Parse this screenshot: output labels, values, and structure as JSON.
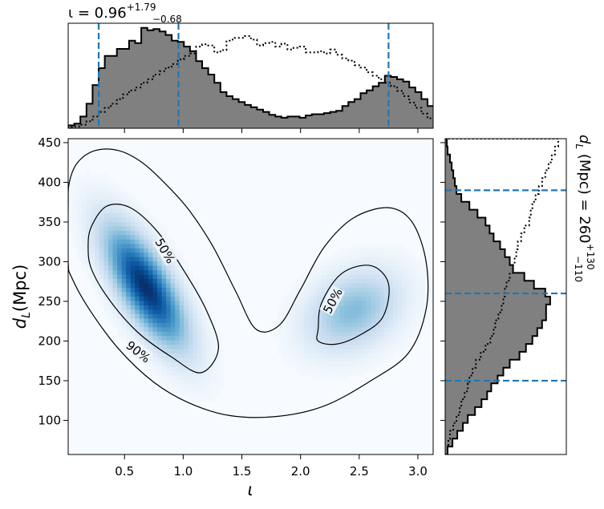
{
  "chart_data": [
    {
      "type": "heatmap",
      "panel": "joint",
      "xlabel": "ι",
      "ylabel_main": "d",
      "ylabel_sub": "L",
      "ylabel_unit": "(Mpc)",
      "xlim": [
        0.02,
        3.13
      ],
      "ylim": [
        57,
        455
      ],
      "xticks": [
        0.5,
        1.0,
        1.5,
        2.0,
        2.5,
        3.0
      ],
      "xtick_labels": [
        "0.5",
        "1.0",
        "1.5",
        "2.0",
        "2.5",
        "3.0"
      ],
      "yticks": [
        100,
        150,
        200,
        250,
        300,
        350,
        400,
        450
      ],
      "ytick_labels": [
        "100",
        "150",
        "200",
        "250",
        "300",
        "350",
        "400",
        "450"
      ],
      "colormap": "Blues",
      "density_modes": [
        {
          "iota": 0.68,
          "dL": 268,
          "weight": 1.0,
          "sigma_iota": 0.22,
          "sigma_dL": 48,
          "corr": -0.72
        },
        {
          "iota": 2.45,
          "dL": 238,
          "weight": 0.38,
          "sigma_iota": 0.25,
          "sigma_dL": 32,
          "corr": 0.3
        }
      ],
      "contours": [
        {
          "label": "90%",
          "paths": [
            [
              [
                0.02,
                370
              ],
              [
                0.03,
                400
              ],
              [
                0.1,
                425
              ],
              [
                0.25,
                440
              ],
              [
                0.45,
                440
              ],
              [
                0.65,
                425
              ],
              [
                0.85,
                398
              ],
              [
                1.05,
                365
              ],
              [
                1.25,
                320
              ],
              [
                1.45,
                262
              ],
              [
                1.62,
                215
              ],
              [
                1.82,
                220
              ],
              [
                2.0,
                265
              ],
              [
                2.2,
                318
              ],
              [
                2.45,
                355
              ],
              [
                2.75,
                368
              ],
              [
                2.95,
                350
              ],
              [
                3.07,
                300
              ],
              [
                3.07,
                240
              ],
              [
                2.92,
                185
              ],
              [
                2.6,
                150
              ],
              [
                2.2,
                118
              ],
              [
                1.8,
                105
              ],
              [
                1.4,
                106
              ],
              [
                1.05,
                122
              ],
              [
                0.75,
                148
              ],
              [
                0.45,
                190
              ],
              [
                0.2,
                240
              ],
              [
                0.05,
                280
              ],
              [
                0.02,
                300
              ]
            ]
          ]
        },
        {
          "label": "50%",
          "paths": [
            [
              [
                0.22,
                345
              ],
              [
                0.35,
                370
              ],
              [
                0.55,
                368
              ],
              [
                0.78,
                338
              ],
              [
                1.0,
                290
              ],
              [
                1.2,
                238
              ],
              [
                1.3,
                190
              ],
              [
                1.15,
                160
              ],
              [
                0.9,
                180
              ],
              [
                0.62,
                210
              ],
              [
                0.38,
                250
              ],
              [
                0.22,
                290
              ],
              [
                0.19,
                320
              ]
            ],
            [
              [
                2.15,
                215
              ],
              [
                2.18,
                248
              ],
              [
                2.35,
                285
              ],
              [
                2.6,
                295
              ],
              [
                2.75,
                272
              ],
              [
                2.7,
                230
              ],
              [
                2.5,
                207
              ],
              [
                2.3,
                196
              ],
              [
                2.15,
                200
              ]
            ]
          ]
        }
      ],
      "contour_labels": [
        {
          "text": "90%",
          "iota": 0.62,
          "dL": 187,
          "angle": 38
        },
        {
          "text": "50%",
          "iota": 0.85,
          "dL": 314,
          "angle": 60
        },
        {
          "text": "50%",
          "iota": 2.27,
          "dL": 251,
          "angle": -62
        }
      ]
    },
    {
      "type": "histogram",
      "panel": "top-marginal",
      "title_prefix": "ι = 0.96",
      "title_sup": "+1.79",
      "title_sub": "−0.68",
      "xlim": [
        0.02,
        3.13
      ],
      "bin_edges_start": 0.02,
      "bin_width": 0.0519,
      "values": [
        5,
        8,
        20,
        42,
        74,
        103,
        124,
        124,
        136,
        136,
        150,
        146,
        172,
        168,
        170,
        166,
        160,
        150,
        148,
        140,
        132,
        115,
        103,
        92,
        78,
        62,
        55,
        50,
        45,
        40,
        36,
        32,
        28,
        23,
        20,
        18,
        20,
        20,
        18,
        22,
        24,
        24,
        26,
        28,
        30,
        38,
        45,
        50,
        60,
        65,
        72,
        78,
        90,
        88,
        84,
        80,
        70,
        62,
        50,
        38,
        22,
        10
      ],
      "prior_values": [
        2,
        3,
        6,
        12,
        20,
        28,
        35,
        42,
        50,
        58,
        65,
        70,
        78,
        84,
        92,
        98,
        104,
        110,
        118,
        124,
        128,
        140,
        144,
        142,
        130,
        134,
        150,
        155,
        155,
        158,
        152,
        142,
        146,
        148,
        140,
        145,
        135,
        138,
        140,
        130,
        130,
        132,
        128,
        135,
        126,
        120,
        116,
        108,
        104,
        96,
        90,
        84,
        78,
        72,
        64,
        55,
        44,
        35,
        25,
        17,
        9,
        3
      ],
      "ylim": [
        0,
        180
      ],
      "vlines": [
        0.28,
        0.96,
        2.75
      ]
    },
    {
      "type": "histogram",
      "panel": "right-marginal",
      "orientation": "horizontal",
      "title_prefix": "d",
      "title_sub_var": "L",
      "title_mid": " (Mpc) = 260",
      "title_sup": "+130",
      "title_sub": "−110",
      "ylim": [
        57,
        455
      ],
      "bin_edges_start": 57,
      "bin_width": 9.95,
      "values": [
        3,
        9,
        15,
        22,
        28,
        37,
        45,
        52,
        57,
        65,
        72,
        80,
        92,
        100,
        108,
        114,
        120,
        125,
        125,
        130,
        124,
        110,
        98,
        84,
        80,
        74,
        68,
        60,
        55,
        50,
        40,
        30,
        20,
        14,
        12,
        10,
        8,
        6,
        3,
        2
      ],
      "prior_values": [
        3,
        4,
        6,
        10,
        14,
        18,
        20,
        24,
        28,
        30,
        34,
        38,
        44,
        50,
        56,
        60,
        62,
        66,
        70,
        72,
        74,
        76,
        80,
        84,
        86,
        88,
        90,
        94,
        98,
        104,
        106,
        108,
        112,
        116,
        120,
        124,
        128,
        132,
        136,
        140
      ],
      "xlim": [
        0,
        150
      ],
      "hlines": [
        150,
        260,
        390
      ]
    }
  ]
}
